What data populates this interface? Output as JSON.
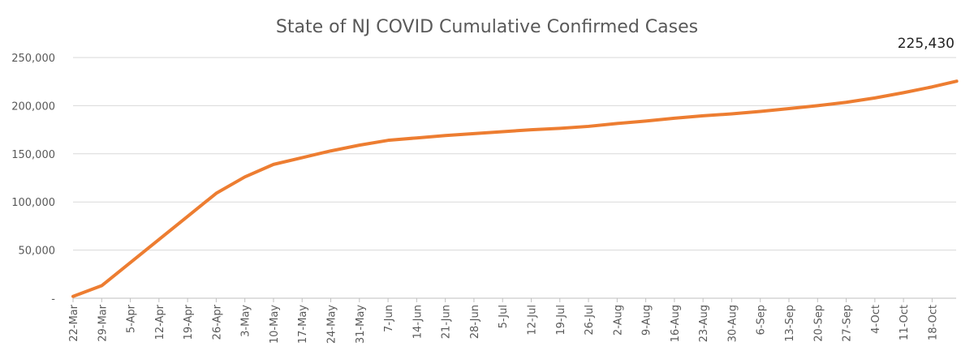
{
  "chart_data": {
    "type": "line",
    "title": "State of NJ COVID Cumulative Confirmed Cases",
    "xlabel": "",
    "ylabel": "",
    "ylim": [
      0,
      250000
    ],
    "yticks": [
      0,
      50000,
      100000,
      150000,
      200000,
      250000
    ],
    "ytick_labels": [
      "-",
      "50,000",
      "100,000",
      "150,000",
      "200,000",
      "250,000"
    ],
    "xtick_labels": [
      "22-Mar",
      "29-Mar",
      "5-Apr",
      "12-Apr",
      "19-Apr",
      "26-Apr",
      "3-May",
      "10-May",
      "17-May",
      "24-May",
      "31-May",
      "7-Jun",
      "14-Jun",
      "21-Jun",
      "28-Jun",
      "5-Jul",
      "12-Jul",
      "19-Jul",
      "26-Jul",
      "2-Aug",
      "9-Aug",
      "16-Aug",
      "23-Aug",
      "30-Aug",
      "6-Sep",
      "13-Sep",
      "20-Sep",
      "27-Sep",
      "4-Oct",
      "11-Oct",
      "18-Oct"
    ],
    "grid": true,
    "legend": "none",
    "line_color": "#ED7D31",
    "series": [
      {
        "x": [
          "22-Mar",
          "29-Mar",
          "5-Apr",
          "12-Apr",
          "19-Apr",
          "26-Apr",
          "3-May",
          "10-May",
          "17-May",
          "24-May",
          "31-May",
          "7-Jun",
          "14-Jun",
          "21-Jun",
          "28-Jun",
          "5-Jul",
          "12-Jul",
          "19-Jul",
          "26-Jul",
          "2-Aug",
          "9-Aug",
          "16-Aug",
          "23-Aug",
          "30-Aug",
          "6-Sep",
          "13-Sep",
          "20-Sep",
          "27-Sep",
          "4-Oct",
          "11-Oct",
          "18-Oct",
          "24-Oct"
        ],
        "values": [
          1900,
          13000,
          37000,
          61000,
          85000,
          109000,
          126000,
          139000,
          146000,
          153000,
          159000,
          164000,
          166500,
          169000,
          171000,
          173000,
          175000,
          176500,
          178500,
          181500,
          184000,
          187000,
          189500,
          191500,
          194000,
          197000,
          200000,
          203500,
          208000,
          213500,
          219500,
          225430
        ]
      }
    ],
    "annotations": [
      {
        "text": "225,430",
        "at": "24-Oct"
      }
    ]
  }
}
